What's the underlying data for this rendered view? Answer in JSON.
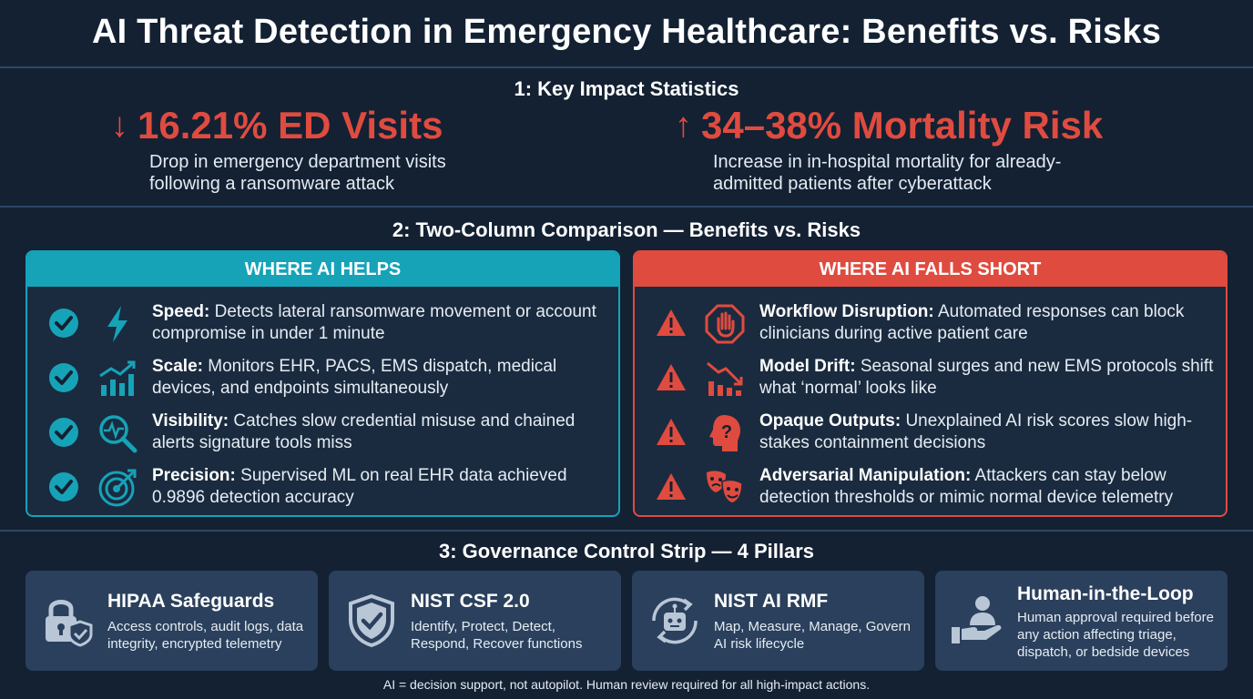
{
  "title": "AI Threat Detection in Emergency Healthcare: Benefits vs. Risks",
  "section1": {
    "heading": "1: Key Impact Statistics",
    "stats": [
      {
        "arrow": "↓",
        "headline": "16.21% ED Visits",
        "line1": "Drop in emergency department visits",
        "line2": "following a ransomware attack"
      },
      {
        "arrow": "↑",
        "headline": "34–38% Mortality Risk",
        "line1": "Increase in in-hospital mortality for already-",
        "line2": "admitted patients after cyberattack"
      }
    ]
  },
  "section2": {
    "heading": "2: Two-Column Comparison — Benefits vs. Risks",
    "helps": {
      "header": "WHERE AI HELPS",
      "items": [
        {
          "icon": "lightning-icon",
          "label": "Speed:",
          "text": "Detects lateral ransomware movement or account compromise in under 1 minute"
        },
        {
          "icon": "bar-chart-icon",
          "label": "Scale:",
          "text": "Monitors EHR, PACS, EMS dispatch, medical devices, and endpoints simultaneously"
        },
        {
          "icon": "magnifier-pulse-icon",
          "label": "Visibility:",
          "text": "Catches slow credential misuse and chained alerts signature tools miss"
        },
        {
          "icon": "target-icon",
          "label": "Precision:",
          "text": "Supervised ML on real EHR data achieved 0.9896 detection accuracy"
        }
      ]
    },
    "short": {
      "header": "WHERE AI FALLS SHORT",
      "items": [
        {
          "icon": "stop-hand-icon",
          "label": "Workflow Disruption:",
          "text": "Automated responses can block clinicians during active patient care"
        },
        {
          "icon": "declining-chart-icon",
          "label": "Model Drift:",
          "text": "Seasonal surges and new EMS protocols shift what ‘normal’ looks like"
        },
        {
          "icon": "question-head-icon",
          "label": "Opaque Outputs:",
          "text": "Unexplained AI risk scores slow high-stakes containment decisions"
        },
        {
          "icon": "theater-masks-icon",
          "label": "Adversarial Manipulation:",
          "text": "Attackers can stay below detection thresholds or mimic normal device telemetry"
        }
      ]
    }
  },
  "section3": {
    "heading": "3: Governance Control Strip — 4 Pillars",
    "pillars": [
      {
        "icon": "lock-shield-icon",
        "title": "HIPAA Safeguards",
        "desc": "Access controls, audit logs, data integrity, encrypted telemetry"
      },
      {
        "icon": "shield-check-icon",
        "title": "NIST CSF 2.0",
        "desc": "Identify, Protect, Detect, Respond, Recover functions"
      },
      {
        "icon": "robot-cycle-icon",
        "title": "NIST AI RMF",
        "desc": "Map, Measure, Manage, Govern AI risk lifecycle"
      },
      {
        "icon": "person-hand-icon",
        "title": "Human-in-the-Loop",
        "desc": "Human approval required before any action affecting triage, dispatch, or bedside devices"
      }
    ]
  },
  "footer": "AI = decision support, not autopilot. Human review required for all high-impact actions.",
  "colors": {
    "background": "#132133",
    "teal": "#16a3b8",
    "red": "#e04b3f",
    "pillar": "#2a405c"
  }
}
